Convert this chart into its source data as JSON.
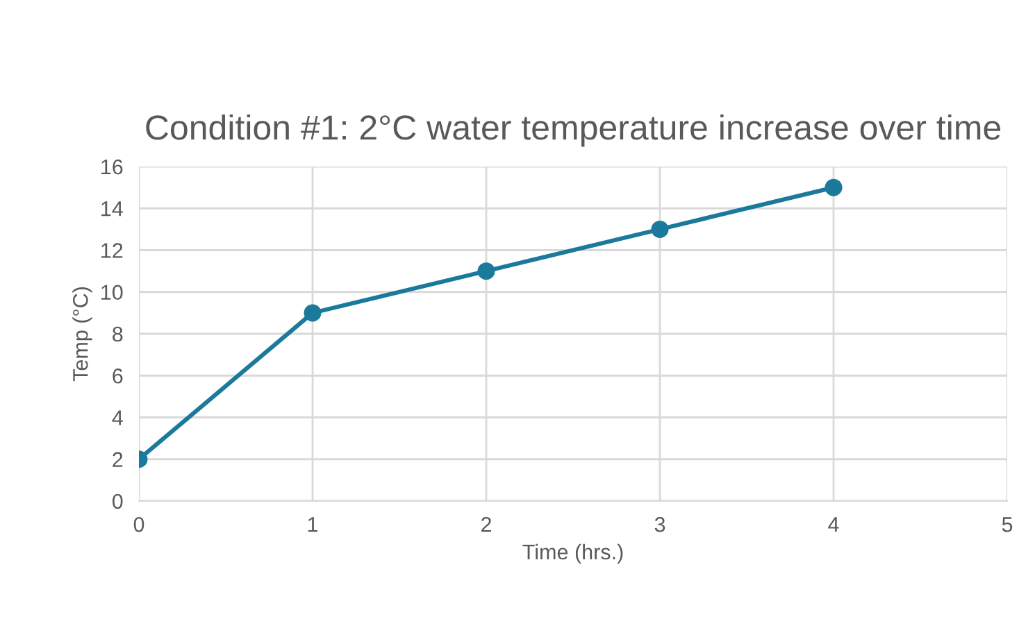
{
  "chart_data": {
    "type": "line",
    "title": "Condition #1: 2°C water temperature increase over time",
    "xlabel": "Time (hrs.)",
    "ylabel": "Temp (°C)",
    "x": [
      0,
      1,
      2,
      3,
      4
    ],
    "series": [
      {
        "color": "#1b7a9c",
        "values": [
          2,
          9,
          11,
          13,
          15
        ]
      }
    ],
    "xlim": [
      0,
      5
    ],
    "xticks": [
      0,
      1,
      2,
      3,
      4,
      5
    ],
    "ylim": [
      0,
      16
    ],
    "yticks": [
      0,
      2,
      4,
      6,
      8,
      10,
      12,
      14,
      16
    ],
    "grid": true,
    "marker": "circle",
    "line_style": "solid"
  }
}
